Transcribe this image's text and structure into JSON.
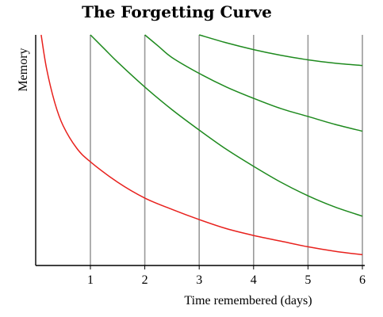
{
  "chart_data": {
    "type": "line",
    "title": "The Forgetting Curve",
    "xlabel": "Time remembered (days)",
    "ylabel": "Memory",
    "xlim": [
      0,
      6
    ],
    "ylim": [
      0,
      100
    ],
    "xticks": [
      1,
      2,
      3,
      4,
      5,
      6
    ],
    "grid_lines_x": [
      1,
      2,
      3,
      4,
      5,
      6
    ],
    "grid": "vertical",
    "legend": "none",
    "series": [
      {
        "color": "#e8211d",
        "x": [
          0.1,
          0.2,
          0.35,
          0.5,
          0.75,
          1,
          1.5,
          2,
          2.5,
          3,
          3.5,
          4,
          4.5,
          5,
          5.5,
          6
        ],
        "y": [
          100,
          85,
          70,
          60,
          50,
          44,
          35,
          28,
          23,
          18.5,
          14.5,
          11.5,
          9,
          6.5,
          4.5,
          3
        ]
      },
      {
        "color": "#1e8a1e",
        "x": [
          1,
          1.25,
          1.5,
          2,
          2.5,
          3,
          3.5,
          4,
          4.5,
          5,
          5.5,
          6
        ],
        "y": [
          100,
          94,
          88,
          77,
          67,
          58,
          49.5,
          42,
          35,
          29,
          24,
          20
        ]
      },
      {
        "color": "#1e8a1e",
        "x": [
          2,
          2.25,
          2.5,
          3,
          3.5,
          4,
          4.5,
          5,
          5.5,
          6
        ],
        "y": [
          100,
          95,
          90,
          83,
          77,
          72,
          67.5,
          64,
          60.5,
          57.5
        ]
      },
      {
        "color": "#1e8a1e",
        "x": [
          3,
          3.5,
          4,
          4.5,
          5,
          5.5,
          6
        ],
        "y": [
          100,
          96.5,
          93.5,
          91,
          89,
          87.5,
          86.5
        ]
      }
    ]
  }
}
